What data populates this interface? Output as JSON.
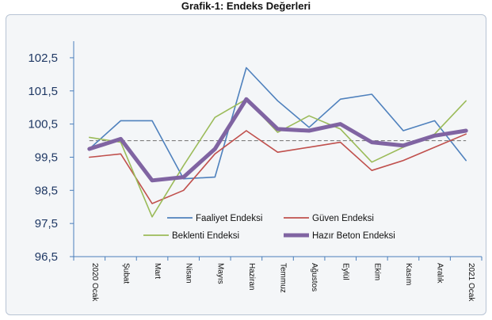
{
  "chart_data": {
    "type": "line",
    "title": "Grafik-1: Endeks Değerleri",
    "categories": [
      "2020 Ocak",
      "Şubat",
      "Mart",
      "Nisan",
      "Mayıs",
      "Haziran",
      "Temmuz",
      "Ağustos",
      "Eylül",
      "Ekim",
      "Kasım",
      "Aralık",
      "2021 Ocak"
    ],
    "ylim": [
      96.5,
      103.0
    ],
    "yticks": [
      "102,5",
      "101,5",
      "100,5",
      "99,5",
      "98,5",
      "97,5",
      "96,5"
    ],
    "ytick_values": [
      102.5,
      101.5,
      100.5,
      99.5,
      98.5,
      97.5,
      96.5
    ],
    "reference_line": 100,
    "grid": false,
    "legend_position": "lower-center",
    "series": [
      {
        "name": "Faaliyet Endeksi",
        "color": "#4f81bd",
        "values": [
          99.75,
          100.6,
          100.6,
          98.85,
          98.9,
          102.2,
          101.2,
          100.4,
          101.25,
          101.4,
          100.3,
          100.6,
          99.4
        ]
      },
      {
        "name": "Güven Endeksi",
        "color": "#c0504d",
        "values": [
          99.5,
          99.6,
          98.1,
          98.5,
          99.6,
          100.3,
          99.65,
          99.8,
          99.95,
          99.1,
          99.4,
          99.8,
          100.2
        ]
      },
      {
        "name": "Beklenti Endeksi",
        "color": "#9bbb59",
        "values": [
          100.1,
          99.95,
          97.7,
          99.25,
          100.7,
          101.25,
          100.25,
          100.75,
          100.35,
          99.35,
          99.8,
          100.2,
          101.2
        ]
      },
      {
        "name": "Hazır Beton Endeksi",
        "color": "#8064a2",
        "values": [
          99.75,
          100.05,
          98.8,
          98.9,
          99.75,
          101.25,
          100.35,
          100.3,
          100.5,
          99.95,
          99.85,
          100.15,
          100.3
        ]
      }
    ]
  }
}
